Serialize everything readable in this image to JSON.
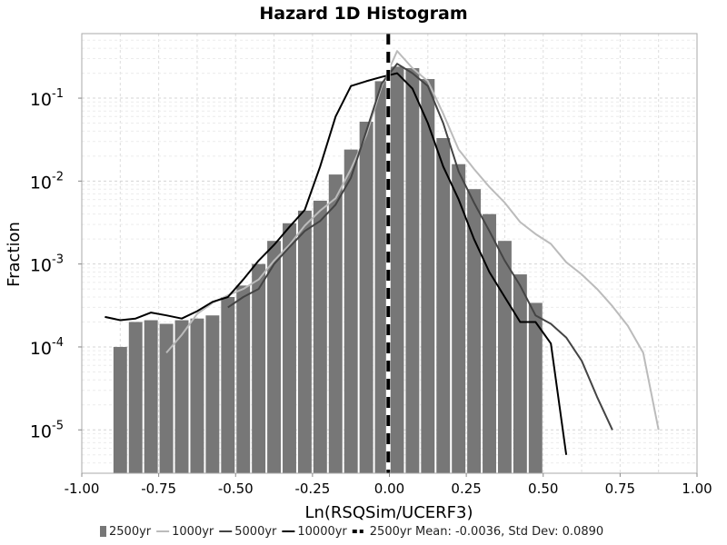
{
  "chart_data": {
    "type": "bar",
    "title": "Hazard 1D Histogram",
    "xlabel": "Ln(RSQSim/UCERF3)",
    "ylabel": "Fraction",
    "xlim": [
      -1.0,
      1.0
    ],
    "ylim": [
      3e-06,
      0.6
    ],
    "yscale": "log",
    "grid": true,
    "legend_position": "bottom",
    "xticks": [
      "-1.00",
      "-0.75",
      "-0.50",
      "-0.25",
      "0.00",
      "0.25",
      "0.50",
      "0.75",
      "1.00"
    ],
    "xtick_values": [
      -1.0,
      -0.75,
      -0.5,
      -0.25,
      0.0,
      0.25,
      0.5,
      0.75,
      1.0
    ],
    "yticks": [
      {
        "base": "10",
        "exp": "-5",
        "value": 1e-05
      },
      {
        "base": "10",
        "exp": "-4",
        "value": 0.0001
      },
      {
        "base": "10",
        "exp": "-3",
        "value": 0.001
      },
      {
        "base": "10",
        "exp": "-2",
        "value": 0.01
      },
      {
        "base": "10",
        "exp": "-1",
        "value": 0.1
      }
    ],
    "bars": {
      "name": "2500yr",
      "color": "#777777",
      "bin_width": 0.05,
      "x": [
        -0.875,
        -0.825,
        -0.775,
        -0.725,
        -0.675,
        -0.625,
        -0.575,
        -0.525,
        -0.475,
        -0.425,
        -0.375,
        -0.325,
        -0.275,
        -0.225,
        -0.175,
        -0.125,
        -0.075,
        -0.025,
        0.025,
        0.075,
        0.125,
        0.175,
        0.225,
        0.275,
        0.325,
        0.375,
        0.425,
        0.475
      ],
      "values": [
        0.0001,
        0.0002,
        0.00021,
        0.00019,
        0.00021,
        0.00022,
        0.00024,
        0.0004,
        0.00055,
        0.001,
        0.0019,
        0.0031,
        0.0044,
        0.0058,
        0.012,
        0.024,
        0.052,
        0.16,
        0.24,
        0.23,
        0.17,
        0.033,
        0.016,
        0.008,
        0.004,
        0.0019,
        0.00075,
        0.00034
      ]
    },
    "series": [
      {
        "name": "1000yr",
        "color": "#bbbbbb",
        "width": 2,
        "x": [
          -0.725,
          -0.675,
          -0.625,
          -0.575,
          -0.525,
          -0.475,
          -0.425,
          -0.375,
          -0.325,
          -0.275,
          -0.225,
          -0.175,
          -0.125,
          -0.075,
          -0.025,
          0.025,
          0.075,
          0.125,
          0.175,
          0.225,
          0.275,
          0.325,
          0.375,
          0.425,
          0.475,
          0.525,
          0.575,
          0.625,
          0.675,
          0.725,
          0.775,
          0.825,
          0.875
        ],
        "values": [
          8.5e-05,
          0.00014,
          0.00025,
          0.00034,
          0.00042,
          0.0005,
          0.00065,
          0.0011,
          0.0017,
          0.0029,
          0.0044,
          0.0062,
          0.014,
          0.036,
          0.14,
          0.37,
          0.23,
          0.16,
          0.065,
          0.024,
          0.014,
          0.0085,
          0.0055,
          0.0032,
          0.0023,
          0.00175,
          0.00105,
          0.00075,
          0.0005,
          0.00031,
          0.00018,
          8.5e-05,
          1e-05
        ]
      },
      {
        "name": "5000yr",
        "color": "#444444",
        "width": 2,
        "x": [
          -0.525,
          -0.475,
          -0.425,
          -0.375,
          -0.325,
          -0.275,
          -0.225,
          -0.175,
          -0.125,
          -0.075,
          -0.025,
          0.025,
          0.075,
          0.125,
          0.175,
          0.225,
          0.275,
          0.325,
          0.375,
          0.425,
          0.475,
          0.525,
          0.575,
          0.625,
          0.675,
          0.725
        ],
        "values": [
          0.0003,
          0.0004,
          0.0005,
          0.001,
          0.0016,
          0.0025,
          0.0033,
          0.0052,
          0.011,
          0.04,
          0.15,
          0.26,
          0.2,
          0.14,
          0.05,
          0.013,
          0.0055,
          0.0025,
          0.0011,
          0.00055,
          0.00024,
          0.00019,
          0.00013,
          6.8e-05,
          2.5e-05,
          1e-05
        ]
      },
      {
        "name": "10000yr",
        "color": "#000000",
        "width": 2,
        "x": [
          -0.925,
          -0.875,
          -0.825,
          -0.775,
          -0.725,
          -0.675,
          -0.625,
          -0.575,
          -0.525,
          -0.475,
          -0.425,
          -0.375,
          -0.325,
          -0.275,
          -0.225,
          -0.175,
          -0.125,
          -0.075,
          -0.025,
          0.025,
          0.075,
          0.125,
          0.175,
          0.225,
          0.275,
          0.325,
          0.375,
          0.425,
          0.475,
          0.525,
          0.575
        ],
        "values": [
          0.00023,
          0.00021,
          0.00022,
          0.00026,
          0.00024,
          0.00022,
          0.00027,
          0.00035,
          0.0004,
          0.00065,
          0.0011,
          0.0017,
          0.0028,
          0.0045,
          0.015,
          0.06,
          0.14,
          0.16,
          0.18,
          0.2,
          0.13,
          0.05,
          0.015,
          0.006,
          0.002,
          0.0008,
          0.0004,
          0.0002,
          0.0002,
          0.00011,
          5e-06
        ]
      }
    ],
    "mean_line": {
      "name": "2500yr Mean: -0.0036, Std Dev: 0.0890",
      "x": -0.0036,
      "color": "#000000"
    },
    "legend": [
      {
        "name": "2500yr",
        "kind": "bar",
        "color": "#777777"
      },
      {
        "name": "1000yr",
        "kind": "line",
        "color": "#bbbbbb"
      },
      {
        "name": "5000yr",
        "kind": "line",
        "color": "#444444"
      },
      {
        "name": "10000yr",
        "kind": "line",
        "color": "#000000"
      },
      {
        "name": "2500yr Mean: -0.0036, Std Dev: 0.0890",
        "kind": "dashed",
        "color": "#000000"
      }
    ]
  }
}
